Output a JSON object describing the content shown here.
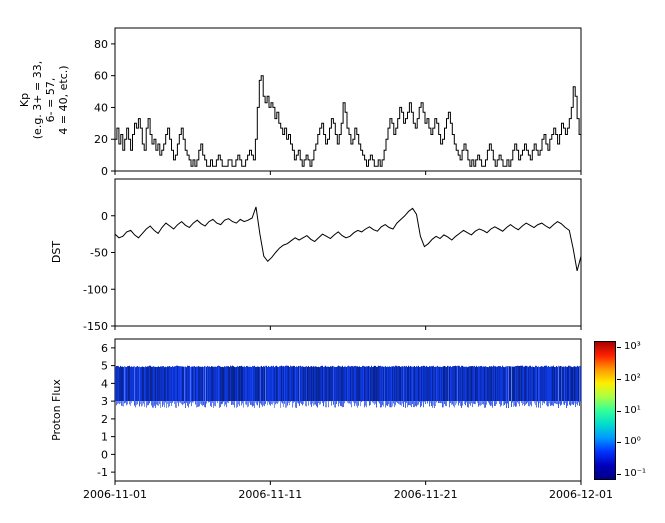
{
  "figure": {
    "background": "#ffffff",
    "line_color": "#000000",
    "axis_color": "#000000"
  },
  "xaxis": {
    "tick_labels": [
      "2006-11-01",
      "2006-11-11",
      "2006-11-21",
      "2006-12-01"
    ],
    "tick_days": [
      0,
      10,
      20,
      30
    ],
    "total_days": 30
  },
  "chart_data": [
    {
      "type": "line",
      "name": "kp",
      "style": "step",
      "ylabel_text": "Kp\n(e.g. 3+ = 33,\n6- = 57,\n4 = 40, etc.)",
      "ylim": [
        0,
        90
      ],
      "yticks": [
        0,
        20,
        40,
        60,
        80
      ],
      "points_per_day": 8,
      "x_start": "2006-11-01",
      "x_end": "2006-12-01",
      "values": [
        20,
        27,
        17,
        23,
        13,
        20,
        27,
        20,
        13,
        23,
        30,
        27,
        33,
        27,
        17,
        13,
        27,
        33,
        23,
        17,
        20,
        13,
        17,
        10,
        13,
        17,
        23,
        27,
        20,
        13,
        7,
        10,
        17,
        23,
        27,
        20,
        13,
        10,
        7,
        3,
        7,
        3,
        7,
        13,
        17,
        10,
        7,
        3,
        3,
        7,
        3,
        3,
        7,
        10,
        7,
        3,
        3,
        3,
        7,
        7,
        3,
        3,
        7,
        10,
        7,
        3,
        3,
        7,
        10,
        13,
        10,
        7,
        20,
        40,
        57,
        60,
        47,
        43,
        47,
        40,
        43,
        40,
        33,
        37,
        30,
        27,
        23,
        27,
        20,
        23,
        17,
        13,
        7,
        10,
        13,
        7,
        3,
        7,
        10,
        7,
        3,
        7,
        13,
        17,
        23,
        27,
        30,
        23,
        17,
        20,
        27,
        33,
        30,
        23,
        17,
        23,
        30,
        43,
        37,
        27,
        23,
        17,
        20,
        27,
        23,
        17,
        13,
        10,
        7,
        3,
        7,
        10,
        7,
        3,
        3,
        7,
        3,
        7,
        13,
        20,
        27,
        33,
        30,
        23,
        27,
        33,
        40,
        37,
        30,
        33,
        37,
        43,
        37,
        30,
        27,
        33,
        40,
        43,
        37,
        30,
        33,
        27,
        23,
        27,
        33,
        30,
        23,
        17,
        20,
        27,
        33,
        37,
        30,
        23,
        17,
        13,
        10,
        7,
        13,
        17,
        13,
        7,
        3,
        7,
        3,
        7,
        10,
        7,
        3,
        3,
        7,
        13,
        17,
        13,
        7,
        3,
        7,
        10,
        7,
        3,
        3,
        7,
        3,
        7,
        13,
        17,
        13,
        7,
        10,
        13,
        17,
        13,
        10,
        7,
        13,
        17,
        13,
        10,
        13,
        20,
        23,
        17,
        13,
        20,
        23,
        27,
        23,
        17,
        23,
        30,
        27,
        23,
        27,
        33,
        40,
        53,
        47,
        33,
        23,
        13
      ]
    },
    {
      "type": "line",
      "name": "dst",
      "style": "line",
      "ylabel": "DST",
      "ylim": [
        -150,
        50
      ],
      "yticks": [
        -150,
        -100,
        -50,
        0
      ],
      "points_per_day": 4,
      "x_start": "2006-11-01",
      "x_end": "2006-12-01",
      "values": [
        -25,
        -30,
        -28,
        -22,
        -20,
        -26,
        -30,
        -24,
        -18,
        -14,
        -20,
        -24,
        -16,
        -10,
        -14,
        -18,
        -12,
        -8,
        -13,
        -16,
        -10,
        -6,
        -11,
        -14,
        -8,
        -5,
        -10,
        -12,
        -6,
        -4,
        -8,
        -10,
        -5,
        -8,
        -6,
        -3,
        12,
        -25,
        -55,
        -62,
        -57,
        -50,
        -44,
        -40,
        -38,
        -34,
        -30,
        -33,
        -30,
        -27,
        -32,
        -35,
        -30,
        -25,
        -28,
        -31,
        -26,
        -22,
        -27,
        -30,
        -28,
        -23,
        -20,
        -22,
        -18,
        -15,
        -19,
        -21,
        -15,
        -12,
        -16,
        -18,
        -10,
        -5,
        0,
        6,
        10,
        2,
        -28,
        -42,
        -38,
        -32,
        -28,
        -31,
        -26,
        -29,
        -33,
        -28,
        -24,
        -20,
        -23,
        -26,
        -21,
        -18,
        -20,
        -23,
        -18,
        -15,
        -18,
        -21,
        -16,
        -12,
        -16,
        -19,
        -14,
        -10,
        -13,
        -16,
        -12,
        -10,
        -14,
        -17,
        -12,
        -8,
        -11,
        -16,
        -20,
        -45,
        -75,
        -55
      ]
    },
    {
      "type": "heatmap",
      "name": "proton_flux",
      "ylabel": "Proton Flux",
      "ylim": [
        -1.5,
        6.5
      ],
      "yticks": [
        -1,
        0,
        1,
        2,
        3,
        4,
        5,
        6
      ],
      "band": {
        "ymin": 3.0,
        "ymax": 5.0,
        "base_color_hue": 228,
        "fringe_max_depth": 0.4,
        "noise_seed": 7
      },
      "colorbar": {
        "tick_labels": [
          "10³",
          "10²",
          "10¹",
          "10⁰",
          "10⁻¹"
        ],
        "tick_exponents": [
          3,
          2,
          1,
          0,
          -1
        ],
        "exp_top": 3.2,
        "exp_bottom": -1.2,
        "colors_top_to_bottom": [
          "#aa0000",
          "#ff2200",
          "#ff9900",
          "#ffee00",
          "#aaff44",
          "#33ff99",
          "#00ddcc",
          "#0099ff",
          "#0033ff",
          "#0000bb",
          "#000088"
        ]
      }
    }
  ]
}
